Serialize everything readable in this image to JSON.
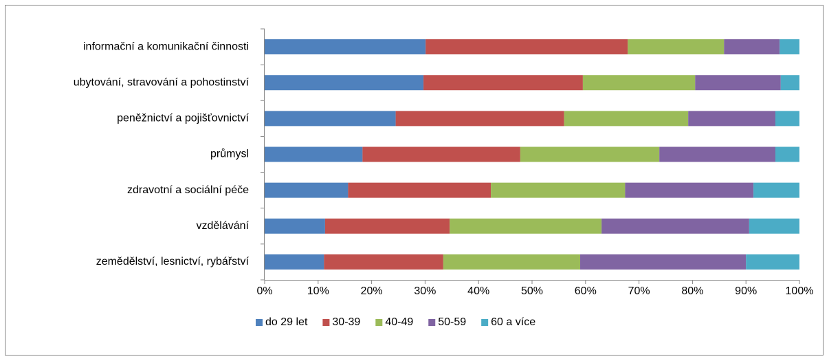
{
  "chart_data": {
    "type": "stacked-bar-horizontal",
    "categories": [
      "informační a komunikační činnosti",
      "ubytování, stravování a pohostinství",
      "peněžnictví a pojišťovnictví",
      "průmysl",
      "zdravotní a sociální péče",
      "vzdělávání",
      "zemědělství, lesnictví, rybářství"
    ],
    "series": [
      {
        "name": "do 29 let",
        "color": "#4f81bd",
        "values": [
          30.1,
          29.7,
          24.5,
          18.3,
          15.6,
          11.3,
          11.1
        ]
      },
      {
        "name": "30-39",
        "color": "#c0504d",
        "values": [
          37.8,
          29.8,
          31.5,
          29.5,
          26.7,
          23.3,
          22.3
        ]
      },
      {
        "name": "40-49",
        "color": "#9bbb59",
        "values": [
          18.0,
          21.0,
          23.2,
          26.0,
          25.1,
          28.4,
          25.6
        ]
      },
      {
        "name": "50-59",
        "color": "#8064a2",
        "values": [
          10.4,
          16.0,
          16.3,
          21.7,
          24.0,
          27.6,
          31.0
        ]
      },
      {
        "name": "60 a více",
        "color": "#4bacc6",
        "values": [
          3.7,
          3.5,
          4.5,
          4.5,
          8.6,
          9.4,
          10.0
        ]
      }
    ],
    "xlim": [
      0,
      100
    ],
    "xticks": [
      {
        "value": 0,
        "label": "0%"
      },
      {
        "value": 10,
        "label": "10%"
      },
      {
        "value": 20,
        "label": "20%"
      },
      {
        "value": 30,
        "label": "30%"
      },
      {
        "value": 40,
        "label": "40%"
      },
      {
        "value": 50,
        "label": "50%"
      },
      {
        "value": 60,
        "label": "60%"
      },
      {
        "value": 70,
        "label": "70%"
      },
      {
        "value": 80,
        "label": "80%"
      },
      {
        "value": 90,
        "label": "90%"
      },
      {
        "value": 100,
        "label": "100%"
      }
    ],
    "legend": "bottom"
  }
}
